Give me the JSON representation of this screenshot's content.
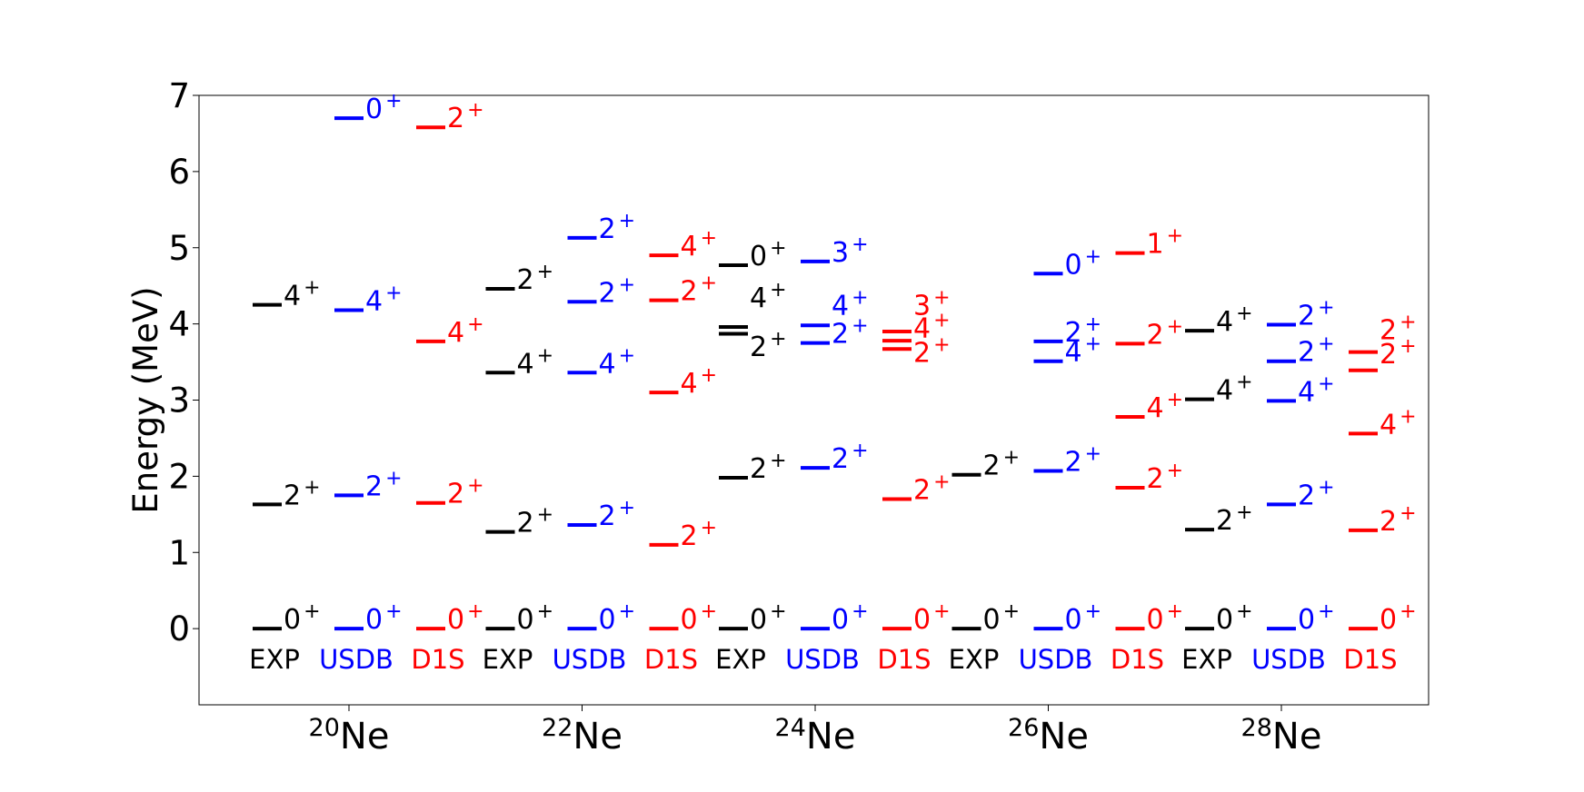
{
  "chart_data": {
    "type": "level-scheme",
    "ylabel": "Energy (MeV)",
    "ylim": [
      -1,
      7
    ],
    "yticks": [
      "0",
      "1",
      "2",
      "3",
      "4",
      "5",
      "6",
      "7"
    ],
    "grid": false,
    "colors": {
      "EXP": "#000000",
      "USDB": "#0000ff",
      "D1S": "#ff0000"
    },
    "nuclei": [
      {
        "mass": "20",
        "symbol": "Ne",
        "columns": [
          {
            "label": "EXP",
            "levels": [
              {
                "e": 0.0,
                "spin": "0",
                "parity": "+"
              },
              {
                "e": 1.63,
                "spin": "2",
                "parity": "+"
              },
              {
                "e": 4.25,
                "spin": "4",
                "parity": "+"
              }
            ]
          },
          {
            "label": "USDB",
            "levels": [
              {
                "e": 0.0,
                "spin": "0",
                "parity": "+"
              },
              {
                "e": 1.75,
                "spin": "2",
                "parity": "+"
              },
              {
                "e": 4.18,
                "spin": "4",
                "parity": "+"
              },
              {
                "e": 6.7,
                "spin": "0",
                "parity": "+"
              }
            ]
          },
          {
            "label": "D1S",
            "levels": [
              {
                "e": 0.0,
                "spin": "0",
                "parity": "+"
              },
              {
                "e": 1.65,
                "spin": "2",
                "parity": "+"
              },
              {
                "e": 3.77,
                "spin": "4",
                "parity": "+"
              },
              {
                "e": 6.58,
                "spin": "2",
                "parity": "+"
              }
            ]
          }
        ]
      },
      {
        "mass": "22",
        "symbol": "Ne",
        "columns": [
          {
            "label": "EXP",
            "levels": [
              {
                "e": 0.0,
                "spin": "0",
                "parity": "+"
              },
              {
                "e": 1.27,
                "spin": "2",
                "parity": "+"
              },
              {
                "e": 3.36,
                "spin": "4",
                "parity": "+"
              },
              {
                "e": 4.46,
                "spin": "2",
                "parity": "+"
              }
            ]
          },
          {
            "label": "USDB",
            "levels": [
              {
                "e": 0.0,
                "spin": "0",
                "parity": "+"
              },
              {
                "e": 1.36,
                "spin": "2",
                "parity": "+"
              },
              {
                "e": 3.36,
                "spin": "4",
                "parity": "+"
              },
              {
                "e": 4.29,
                "spin": "2",
                "parity": "+"
              },
              {
                "e": 5.13,
                "spin": "2",
                "parity": "+"
              }
            ]
          },
          {
            "label": "D1S",
            "levels": [
              {
                "e": 0.0,
                "spin": "0",
                "parity": "+"
              },
              {
                "e": 1.1,
                "spin": "2",
                "parity": "+"
              },
              {
                "e": 3.1,
                "spin": "4",
                "parity": "+"
              },
              {
                "e": 4.31,
                "spin": "2",
                "parity": "+"
              },
              {
                "e": 4.9,
                "spin": "4",
                "parity": "+"
              }
            ]
          }
        ]
      },
      {
        "mass": "24",
        "symbol": "Ne",
        "columns": [
          {
            "label": "EXP",
            "levels": [
              {
                "e": 0.0,
                "spin": "0",
                "parity": "+"
              },
              {
                "e": 1.98,
                "spin": "2",
                "parity": "+"
              },
              {
                "e": 3.87,
                "spin": "2",
                "parity": "+",
                "label_e": 3.58
              },
              {
                "e": 3.96,
                "spin": "4",
                "parity": "+",
                "label_e": 4.22
              },
              {
                "e": 4.77,
                "spin": "0",
                "parity": "+"
              }
            ]
          },
          {
            "label": "USDB",
            "levels": [
              {
                "e": 0.0,
                "spin": "0",
                "parity": "+"
              },
              {
                "e": 2.11,
                "spin": "2",
                "parity": "+"
              },
              {
                "e": 3.75,
                "spin": "2",
                "parity": "+"
              },
              {
                "e": 3.98,
                "spin": "4",
                "parity": "+",
                "label_e": 4.12
              },
              {
                "e": 4.82,
                "spin": "3",
                "parity": "+"
              }
            ]
          },
          {
            "label": "D1S",
            "levels": [
              {
                "e": 0.0,
                "spin": "0",
                "parity": "+"
              },
              {
                "e": 1.7,
                "spin": "2",
                "parity": "+"
              },
              {
                "e": 3.67,
                "spin": "2",
                "parity": "+",
                "label_e": 3.5
              },
              {
                "e": 3.78,
                "spin": "4",
                "parity": "+",
                "label_e": 3.82
              },
              {
                "e": 3.9,
                "spin": "3",
                "parity": "+",
                "label_e": 4.12
              }
            ]
          }
        ]
      },
      {
        "mass": "26",
        "symbol": "Ne",
        "columns": [
          {
            "label": "EXP",
            "levels": [
              {
                "e": 0.0,
                "spin": "0",
                "parity": "+"
              },
              {
                "e": 2.02,
                "spin": "2",
                "parity": "+"
              }
            ]
          },
          {
            "label": "USDB",
            "levels": [
              {
                "e": 0.0,
                "spin": "0",
                "parity": "+"
              },
              {
                "e": 2.07,
                "spin": "2",
                "parity": "+"
              },
              {
                "e": 3.51,
                "spin": "4",
                "parity": "+"
              },
              {
                "e": 3.77,
                "spin": "2",
                "parity": "+"
              },
              {
                "e": 4.66,
                "spin": "0",
                "parity": "+"
              }
            ]
          },
          {
            "label": "D1S",
            "levels": [
              {
                "e": 0.0,
                "spin": "0",
                "parity": "+"
              },
              {
                "e": 1.85,
                "spin": "2",
                "parity": "+"
              },
              {
                "e": 2.78,
                "spin": "4",
                "parity": "+"
              },
              {
                "e": 3.74,
                "spin": "2",
                "parity": "+"
              },
              {
                "e": 4.93,
                "spin": "1",
                "parity": "+"
              }
            ]
          }
        ]
      },
      {
        "mass": "28",
        "symbol": "Ne",
        "columns": [
          {
            "label": "EXP",
            "levels": [
              {
                "e": 0.0,
                "spin": "0",
                "parity": "+"
              },
              {
                "e": 1.3,
                "spin": "2",
                "parity": "+"
              },
              {
                "e": 3.01,
                "spin": "4",
                "parity": "+"
              },
              {
                "e": 3.91,
                "spin": "4",
                "parity": "+"
              }
            ]
          },
          {
            "label": "USDB",
            "levels": [
              {
                "e": 0.0,
                "spin": "0",
                "parity": "+"
              },
              {
                "e": 1.63,
                "spin": "2",
                "parity": "+"
              },
              {
                "e": 2.99,
                "spin": "4",
                "parity": "+"
              },
              {
                "e": 3.51,
                "spin": "2",
                "parity": "+"
              },
              {
                "e": 3.99,
                "spin": "2",
                "parity": "+"
              }
            ]
          },
          {
            "label": "D1S",
            "levels": [
              {
                "e": 0.0,
                "spin": "0",
                "parity": "+"
              },
              {
                "e": 1.29,
                "spin": "2",
                "parity": "+"
              },
              {
                "e": 2.56,
                "spin": "4",
                "parity": "+"
              },
              {
                "e": 3.39,
                "spin": "2",
                "parity": "+",
                "label_e": 3.48
              },
              {
                "e": 3.63,
                "spin": "2",
                "parity": "+",
                "label_e": 3.8
              }
            ]
          }
        ]
      }
    ]
  }
}
